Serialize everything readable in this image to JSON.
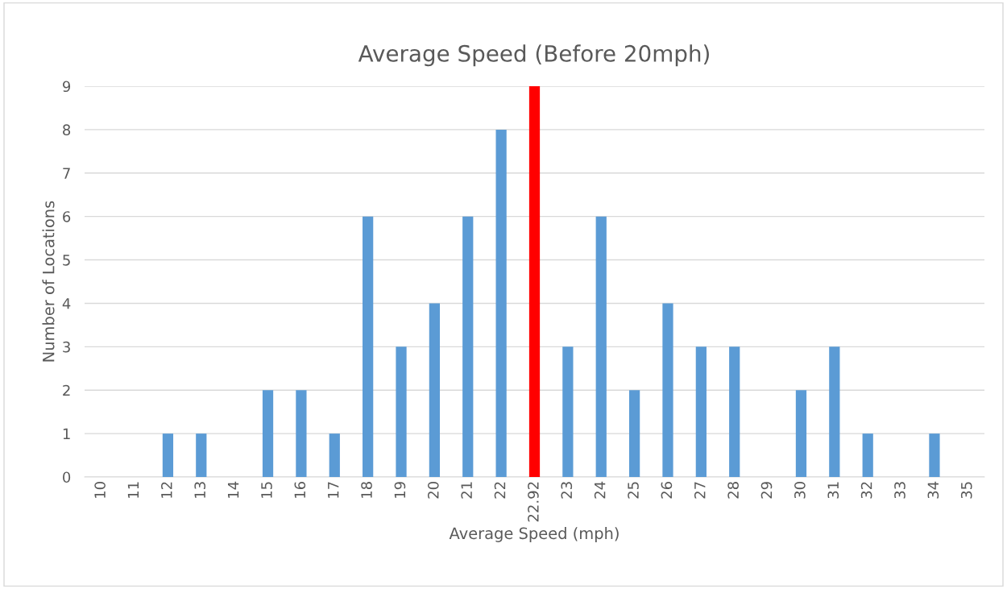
{
  "chart_data": {
    "type": "bar",
    "title": "Average Speed (Before 20mph)",
    "xlabel": "Average Speed (mph)",
    "ylabel": "Number of Locations",
    "categories": [
      "10",
      "11",
      "12",
      "13",
      "14",
      "15",
      "16",
      "17",
      "18",
      "19",
      "20",
      "21",
      "22",
      "22.92",
      "23",
      "24",
      "25",
      "26",
      "27",
      "28",
      "29",
      "30",
      "31",
      "32",
      "33",
      "34",
      "35"
    ],
    "values": [
      0,
      0,
      1,
      1,
      0,
      2,
      2,
      1,
      6,
      3,
      4,
      6,
      8,
      9,
      3,
      6,
      2,
      4,
      3,
      3,
      0,
      2,
      3,
      1,
      0,
      1,
      0
    ],
    "colors": [
      "#5b9bd5",
      "#5b9bd5",
      "#5b9bd5",
      "#5b9bd5",
      "#5b9bd5",
      "#5b9bd5",
      "#5b9bd5",
      "#5b9bd5",
      "#5b9bd5",
      "#5b9bd5",
      "#5b9bd5",
      "#5b9bd5",
      "#5b9bd5",
      "#ff0000",
      "#5b9bd5",
      "#5b9bd5",
      "#5b9bd5",
      "#5b9bd5",
      "#5b9bd5",
      "#5b9bd5",
      "#5b9bd5",
      "#5b9bd5",
      "#5b9bd5",
      "#5b9bd5",
      "#5b9bd5",
      "#5b9bd5",
      "#5b9bd5"
    ],
    "ylim": [
      0,
      9
    ],
    "yticks": [
      0,
      1,
      2,
      3,
      4,
      5,
      6,
      7,
      8,
      9
    ],
    "grid": "y",
    "legend": false
  }
}
